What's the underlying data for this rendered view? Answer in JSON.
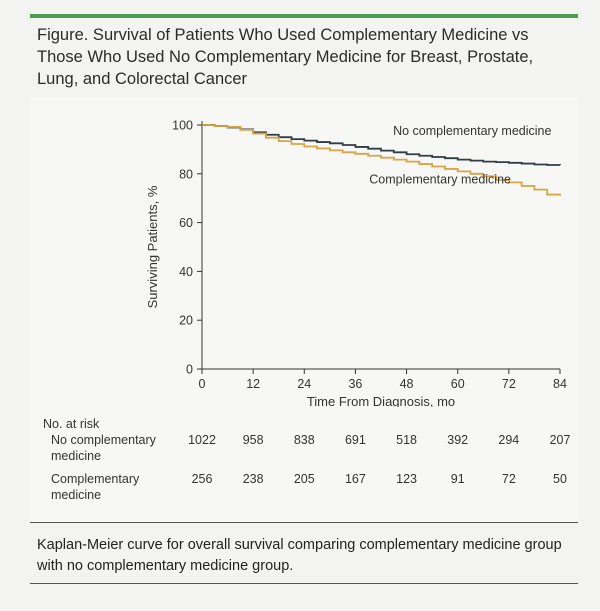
{
  "figure": {
    "title": "Figure. Survival of Patients Who Used Complementary Medicine vs Those Who Used No Complementary Medicine for Breast, Prostate, Lung, and Colorectal Cancer",
    "caption": "Kaplan-Meier curve for overall survival comparing complementary medicine group with no complementary medicine group."
  },
  "colors": {
    "no_cm": "#2f3e46",
    "cm": "#d9a441",
    "accent_rule": "#4a9c4f"
  },
  "chart_data": {
    "type": "line",
    "title": "",
    "xlabel": "Time From Diagnosis, mo",
    "ylabel": "Surviving Patients, %",
    "xlim": [
      0,
      84
    ],
    "ylim": [
      0,
      100
    ],
    "xticks": [
      0,
      12,
      24,
      36,
      48,
      60,
      72,
      84
    ],
    "yticks": [
      0,
      20,
      40,
      60,
      80,
      100
    ],
    "series": [
      {
        "name": "No complementary medicine",
        "x": [
          0,
          3,
          6,
          9,
          12,
          15,
          18,
          21,
          24,
          27,
          30,
          33,
          36,
          39,
          42,
          45,
          48,
          51,
          54,
          57,
          60,
          63,
          66,
          69,
          72,
          75,
          78,
          81,
          84
        ],
        "y": [
          100,
          99.6,
          99.0,
          98.2,
          97.0,
          96.0,
          95.0,
          94.2,
          93.6,
          93.0,
          92.5,
          91.8,
          91.0,
          90.3,
          89.5,
          88.8,
          88.0,
          87.4,
          86.9,
          86.4,
          85.8,
          85.4,
          85.0,
          84.8,
          84.5,
          84.2,
          83.8,
          83.6,
          83.5
        ]
      },
      {
        "name": "Complementary medicine",
        "x": [
          0,
          3,
          6,
          9,
          12,
          15,
          18,
          21,
          24,
          27,
          30,
          33,
          36,
          39,
          42,
          45,
          48,
          51,
          54,
          57,
          60,
          63,
          66,
          69,
          72,
          75,
          78,
          81,
          84
        ],
        "y": [
          100,
          99.6,
          99.2,
          98.0,
          96.5,
          94.8,
          93.4,
          92.2,
          91.2,
          90.4,
          89.6,
          88.8,
          88.2,
          87.4,
          86.6,
          85.8,
          85.0,
          84.0,
          83.0,
          82.0,
          81.0,
          80.0,
          79.0,
          77.5,
          76.5,
          75.0,
          73.5,
          71.5,
          71.0
        ]
      }
    ],
    "annotations": [
      "No complementary medicine",
      "Complementary medicine"
    ]
  },
  "at_risk": {
    "label": "No. at risk",
    "rows": [
      {
        "label_line1": "No complementary",
        "label_line2": "medicine",
        "values": [
          "1022",
          "958",
          "838",
          "691",
          "518",
          "392",
          "294",
          "207"
        ]
      },
      {
        "label_line1": "Complementary",
        "label_line2": "medicine",
        "values": [
          "256",
          "238",
          "205",
          "167",
          "123",
          "91",
          "72",
          "50"
        ]
      }
    ]
  }
}
